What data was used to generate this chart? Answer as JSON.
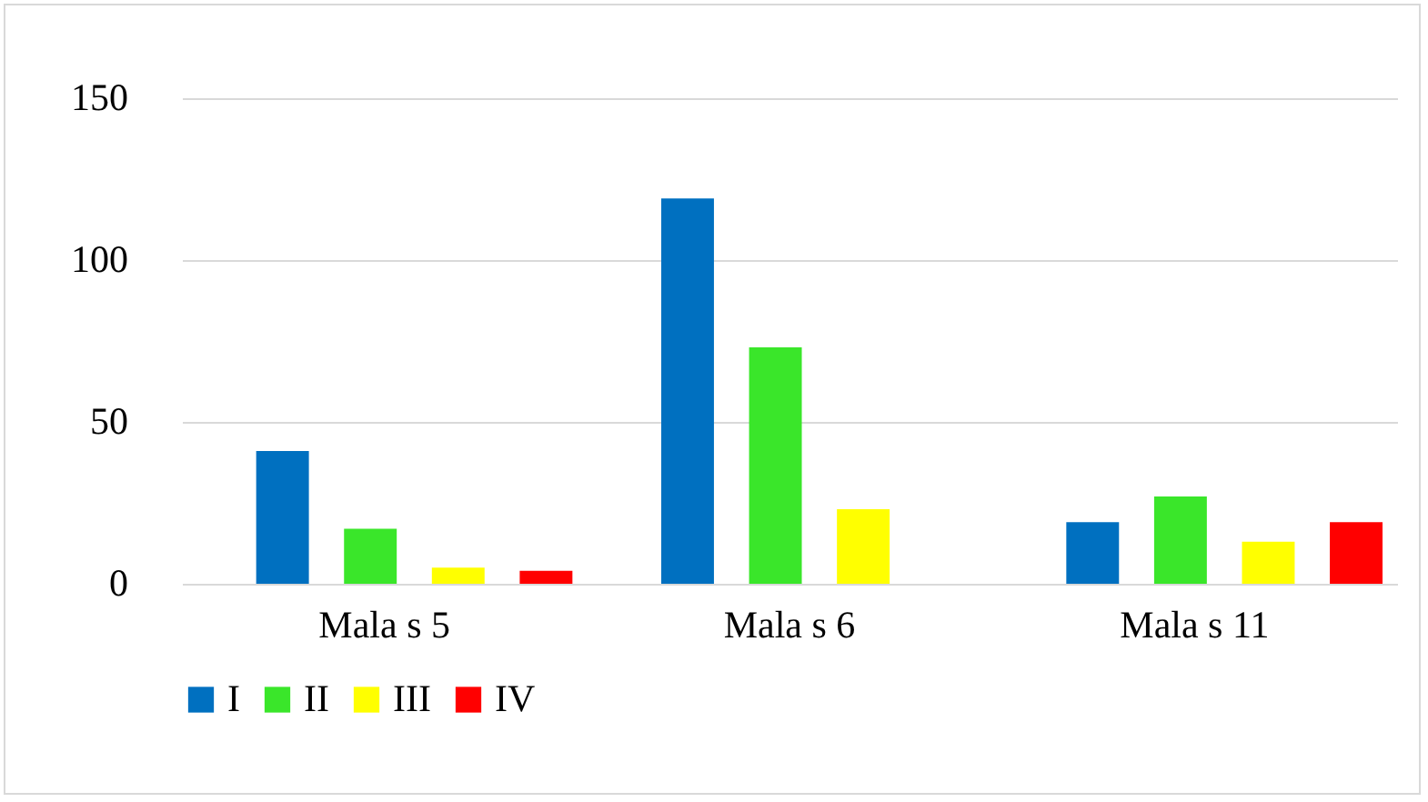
{
  "chart_data": {
    "type": "bar",
    "categories": [
      "Mala s 5",
      "Mala s 6",
      "Mala s 11"
    ],
    "series": [
      {
        "name": "I",
        "color": "#0070c0",
        "values": [
          41,
          119,
          19
        ]
      },
      {
        "name": "II",
        "color": "#3ae62a",
        "values": [
          17,
          73,
          27
        ]
      },
      {
        "name": "III",
        "color": "#ffff00",
        "values": [
          5,
          23,
          13
        ]
      },
      {
        "name": "IV",
        "color": "#ff0000",
        "values": [
          4,
          null,
          19
        ]
      }
    ],
    "ylim": [
      0,
      150
    ],
    "yticks": [
      0,
      50,
      100,
      150
    ],
    "grid": "y",
    "legend": "bottom"
  }
}
